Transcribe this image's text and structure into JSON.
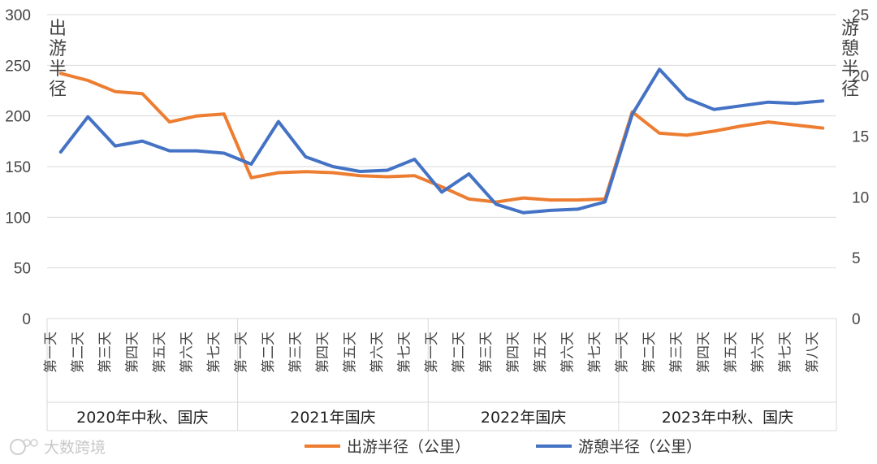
{
  "chart_data": {
    "type": "line",
    "y_left_label": "出游半径",
    "y_right_label": "游憩半径",
    "y_left_ticks": [
      "0",
      "50",
      "100",
      "150",
      "200",
      "250",
      "300"
    ],
    "y_right_ticks": [
      "0",
      "5",
      "10",
      "15",
      "20",
      "25"
    ],
    "ylim_left": [
      0,
      300
    ],
    "ylim_right": [
      0,
      25
    ],
    "grid": true,
    "legend_position": "bottom",
    "groups": [
      {
        "label": "2020年中秋、国庆",
        "categories": [
          "第一天",
          "第二天",
          "第三天",
          "第四天",
          "第五天",
          "第六天",
          "第七天"
        ]
      },
      {
        "label": "2021年国庆",
        "categories": [
          "第一天",
          "第二天",
          "第三天",
          "第四天",
          "第五天",
          "第六天",
          "第七天"
        ]
      },
      {
        "label": "2022年国庆",
        "categories": [
          "第一天",
          "第二天",
          "第三天",
          "第四天",
          "第五天",
          "第六天",
          "第七天"
        ]
      },
      {
        "label": "2023年中秋、国庆",
        "categories": [
          "第一天",
          "第二天",
          "第三天",
          "第四天",
          "第五天",
          "第六天",
          "第七天",
          "第八天"
        ]
      }
    ],
    "series": [
      {
        "name": "出游半径（公里）",
        "axis": "left",
        "color": "#ED7D31",
        "values": [
          242,
          235,
          224,
          222,
          194,
          200,
          202,
          139,
          144,
          145,
          144,
          141,
          140,
          141,
          130,
          118,
          115,
          119,
          117,
          117,
          118,
          204,
          183,
          181,
          185,
          190,
          194,
          191,
          188
        ]
      },
      {
        "name": "游憩半径（公里）",
        "axis": "right",
        "color": "#4472C4",
        "values": [
          13.7,
          16.6,
          14.2,
          14.6,
          13.8,
          13.8,
          13.6,
          12.7,
          16.2,
          13.3,
          12.5,
          12.1,
          12.2,
          13.1,
          10.4,
          11.9,
          9.4,
          8.7,
          8.9,
          9.0,
          9.6,
          16.8,
          20.5,
          18.1,
          17.2,
          17.5,
          17.8,
          17.7,
          17.9
        ]
      }
    ]
  },
  "watermark": "大数跨境"
}
